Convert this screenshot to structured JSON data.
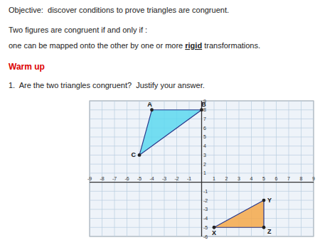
{
  "chart_data": {
    "type": "polygon",
    "annotations": [
      {
        "text": "Objective:  discover conditions to prove triangles are congruent."
      },
      {
        "text": "Two figures are congruent if and only if :"
      },
      {
        "segments": [
          "one can be mapped onto the other by one or more ",
          "rigid",
          " transformations."
        ]
      },
      {
        "text": "Warm up",
        "color": "#DD0000"
      },
      {
        "text": "1.  Are the two triangles congruent?  Justify your answer."
      }
    ],
    "series": [
      {
        "x": [
          -4,
          0,
          -5
        ],
        "values": [
          8,
          8,
          3
        ],
        "point_labels": [
          "A",
          "B",
          "C"
        ],
        "color": "#5DD8F0"
      },
      {
        "x": [
          1,
          5,
          5
        ],
        "values": [
          -5,
          -2,
          -5
        ],
        "point_labels": [
          "X",
          "Y",
          "Z"
        ],
        "color": "#F5A84A"
      }
    ],
    "xlim": [
      -9,
      9
    ],
    "ylim": [
      -6,
      9
    ],
    "xticks": [
      -9,
      -8,
      -7,
      -6,
      -5,
      -4,
      -3,
      -2,
      -1,
      1,
      2,
      3,
      4,
      5,
      6,
      7,
      8,
      9
    ],
    "yticks": [
      -6,
      -5,
      -4,
      -3,
      -2,
      -1,
      1,
      2,
      3,
      4,
      5,
      6,
      7,
      8,
      9
    ],
    "grid": true
  }
}
